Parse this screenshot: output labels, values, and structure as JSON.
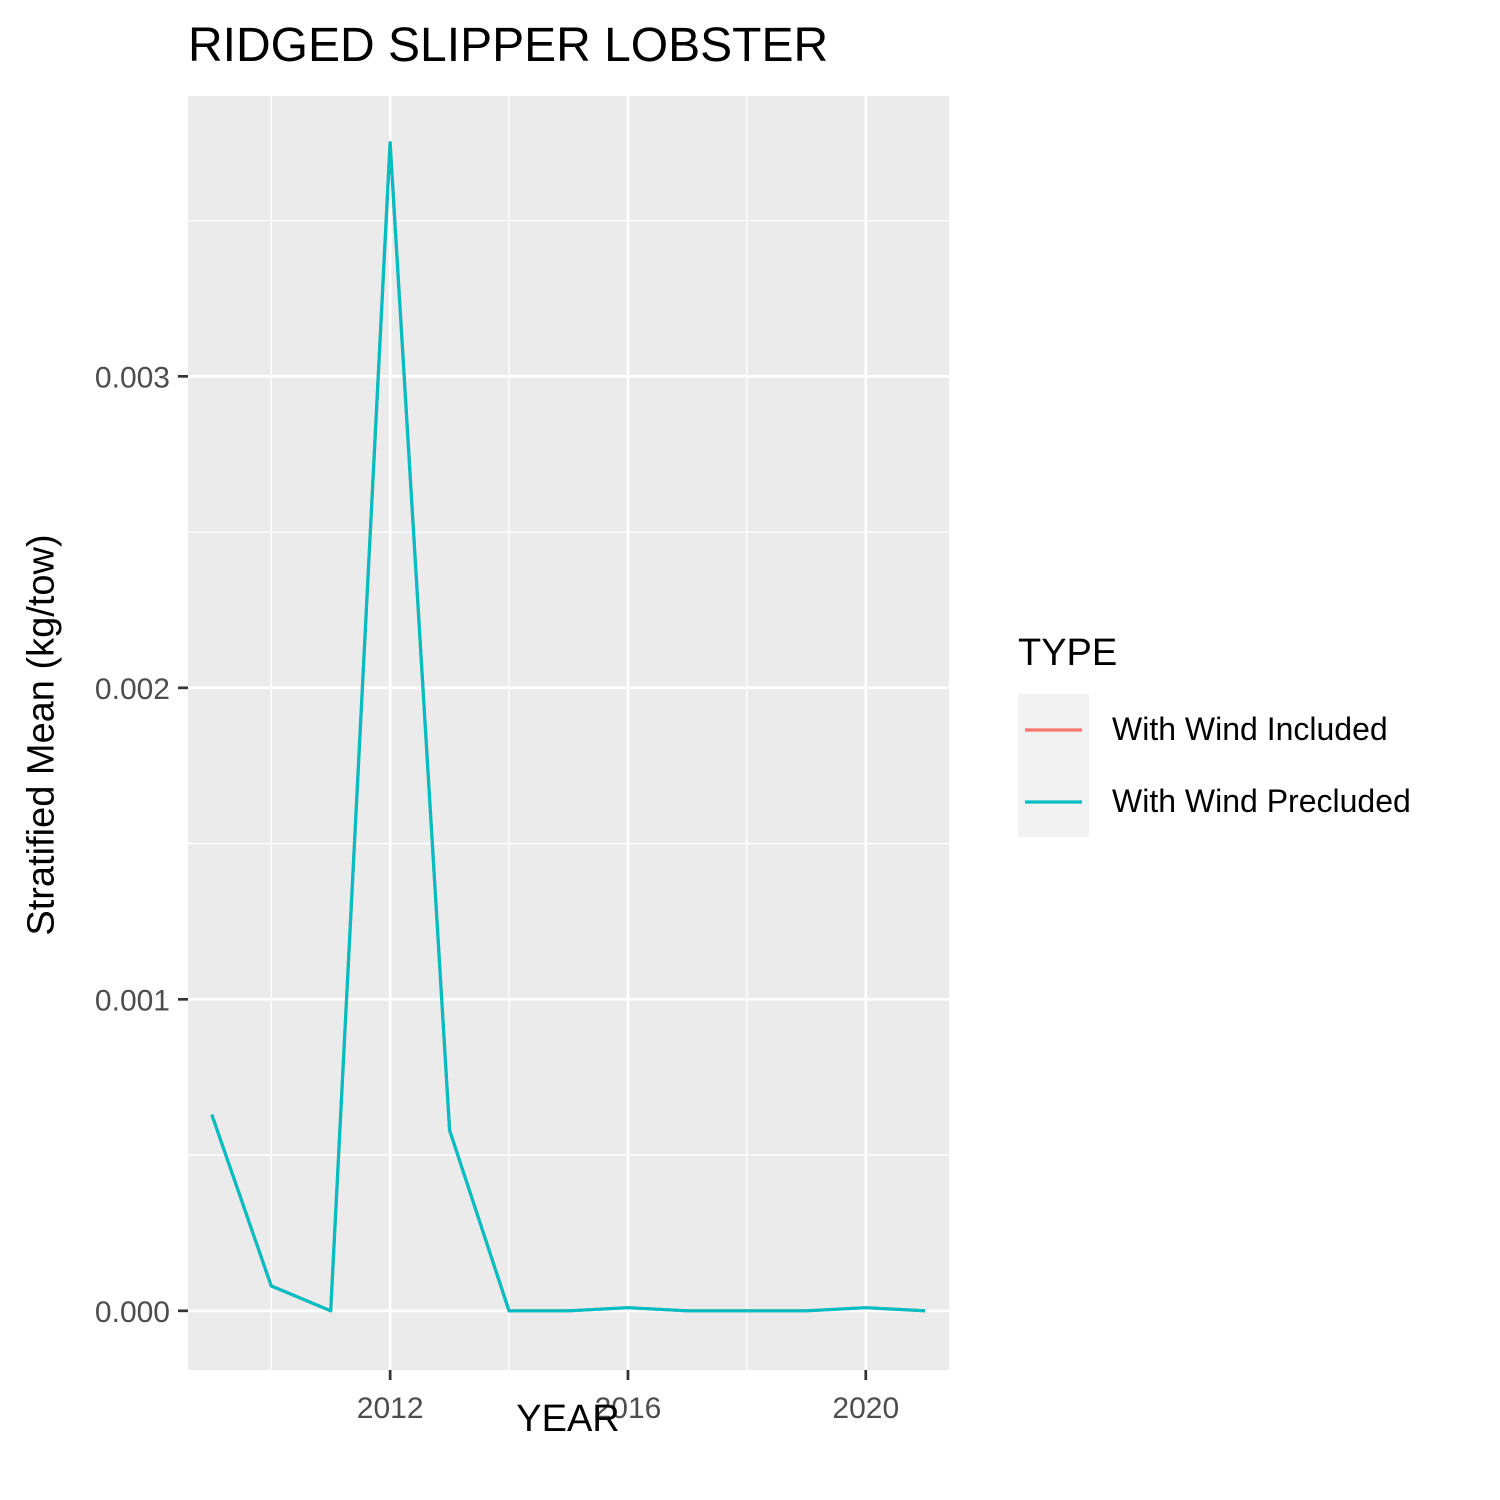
{
  "chart_data": {
    "type": "line",
    "title": "RIDGED SLIPPER LOBSTER",
    "xlabel": "YEAR",
    "ylabel": "Stratified Mean (kg/tow)",
    "xlim": [
      2008.6,
      2021.4
    ],
    "ylim": [
      -0.00019,
      0.0039
    ],
    "x_ticks": [
      2012,
      2016,
      2020
    ],
    "x_tick_labels": [
      "2012",
      "2016",
      "2020"
    ],
    "y_ticks": [
      0,
      0.001,
      0.002,
      0.003
    ],
    "y_tick_labels": [
      "0.000",
      "0.001",
      "0.002",
      "0.003"
    ],
    "grid": true,
    "legend_position": "right",
    "legend_title": "TYPE",
    "x": [
      2009,
      2010,
      2011,
      2012,
      2013,
      2014,
      2015,
      2016,
      2017,
      2018,
      2019,
      2020,
      2021
    ],
    "series": [
      {
        "name": "With Wind Included",
        "color": "#F8766D",
        "values": [
          0.00063,
          8e-05,
          0.0,
          0.00375,
          0.00058,
          0.0,
          0.0,
          1e-05,
          0.0,
          0.0,
          0.0,
          1e-05,
          0.0
        ]
      },
      {
        "name": "With Wind Precluded",
        "color": "#00BFC4",
        "values": [
          0.00063,
          8e-05,
          0.0,
          0.00375,
          0.00058,
          0.0,
          0.0,
          1e-05,
          0.0,
          0.0,
          0.0,
          1e-05,
          0.0
        ]
      }
    ]
  }
}
